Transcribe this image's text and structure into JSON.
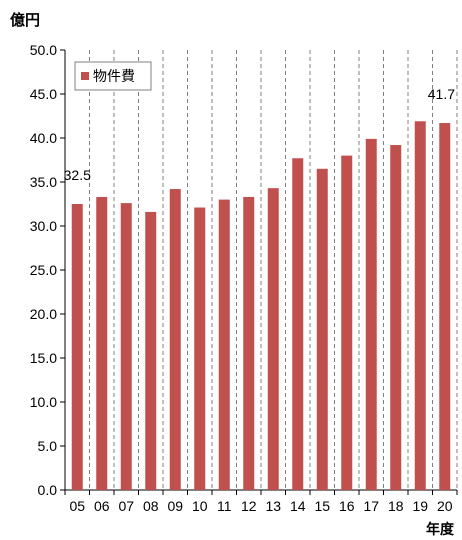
{
  "chart_data": {
    "type": "bar",
    "title": "",
    "ylabel": "億円",
    "xlabel": "年度",
    "categories": [
      "05",
      "06",
      "07",
      "08",
      "09",
      "10",
      "11",
      "12",
      "13",
      "14",
      "15",
      "16",
      "17",
      "18",
      "19",
      "20"
    ],
    "series": [
      {
        "name": "物件費",
        "color": "#c0504d",
        "values": [
          32.5,
          33.3,
          32.6,
          31.6,
          34.2,
          32.1,
          33.0,
          33.3,
          34.3,
          37.7,
          36.5,
          38.0,
          39.9,
          39.2,
          41.9,
          41.7
        ]
      }
    ],
    "ylim": [
      0,
      50
    ],
    "ytick_step": 5,
    "ytick_labels": [
      "0.0",
      "5.0",
      "10.0",
      "15.0",
      "20.0",
      "25.0",
      "30.0",
      "35.0",
      "40.0",
      "45.0",
      "50.0"
    ],
    "data_labels": [
      {
        "category": "05",
        "text": "32.5"
      },
      {
        "category": "20",
        "text": "41.7"
      }
    ],
    "grid": {
      "vertical": "dashed",
      "horizontal": "none"
    },
    "legend": "top-left"
  }
}
